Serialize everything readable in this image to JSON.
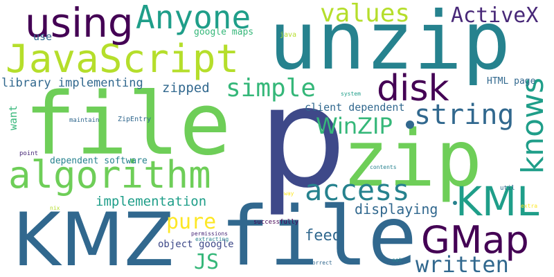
{
  "palette": {
    "dark_purple": "#440154",
    "purple": "#482878",
    "indigo": "#3e4989",
    "blue": "#31688e",
    "teal_blue": "#26828e",
    "teal": "#1f9e89",
    "green_teal": "#35b779",
    "green": "#6ece58",
    "lime": "#b5de2b",
    "yellow": "#fde725"
  },
  "words": [
    {
      "id": "p",
      "text": "p"
    },
    {
      "id": "file_big",
      "text": "file"
    },
    {
      "id": "file_bottom",
      "text": "file"
    },
    {
      "id": "unzip",
      "text": "unzip"
    },
    {
      "id": "zip",
      "text": "zip"
    },
    {
      "id": "kmz",
      "text": "KMZ"
    },
    {
      "id": "javascript",
      "text": "JavaScript"
    },
    {
      "id": "algorithm",
      "text": "algorithm"
    },
    {
      "id": "anyone",
      "text": "Anyone"
    },
    {
      "id": "using",
      "text": "using"
    },
    {
      "id": "values",
      "text": "values"
    },
    {
      "id": "activex",
      "text": "ActiveX"
    },
    {
      "id": "gmap",
      "text": "GMap"
    },
    {
      "id": "kml",
      "text": "KML"
    },
    {
      "id": "disk",
      "text": "disk"
    },
    {
      "id": "simple",
      "text": "simple"
    },
    {
      "id": "string",
      "text": "string"
    },
    {
      "id": "knows",
      "text": "knows"
    },
    {
      "id": "access",
      "text": "access"
    },
    {
      "id": "written",
      "text": "written"
    },
    {
      "id": "winzip",
      "text": "WinZIP"
    },
    {
      "id": "pure",
      "text": "pure"
    },
    {
      "id": "js",
      "text": "JS"
    },
    {
      "id": "feed",
      "text": "feed"
    },
    {
      "id": "implementation",
      "text": "implementation"
    },
    {
      "id": "displaying",
      "text": "displaying"
    },
    {
      "id": "library_implementing",
      "text": "library implementing"
    },
    {
      "id": "zipped",
      "text": "zipped"
    },
    {
      "id": "client_dependent",
      "text": "client dependent"
    },
    {
      "id": "dependent_software",
      "text": "dependent software"
    },
    {
      "id": "object_google",
      "text": "object google"
    },
    {
      "id": "want",
      "text": "want"
    },
    {
      "id": "use",
      "text": "use"
    },
    {
      "id": "google_maps",
      "text": "google maps"
    },
    {
      "id": "html_page",
      "text": "HTML page"
    },
    {
      "id": "java",
      "text": "java"
    },
    {
      "id": "system",
      "text": "system"
    },
    {
      "id": "maintain",
      "text": "maintain"
    },
    {
      "id": "zipentry",
      "text": "ZipEntry"
    },
    {
      "id": "point",
      "text": "point"
    },
    {
      "id": "contents",
      "text": "contents"
    },
    {
      "id": "util",
      "text": "util"
    },
    {
      "id": "way",
      "text": "way"
    },
    {
      "id": "extra",
      "text": "extra"
    },
    {
      "id": "nix",
      "text": "nix"
    },
    {
      "id": "successfully",
      "text": "successfully"
    },
    {
      "id": "permissions",
      "text": "permissions"
    },
    {
      "id": "extracting",
      "text": "extracting"
    },
    {
      "id": "correct",
      "text": "correct"
    },
    {
      "id": "set",
      "text": "set"
    }
  ]
}
